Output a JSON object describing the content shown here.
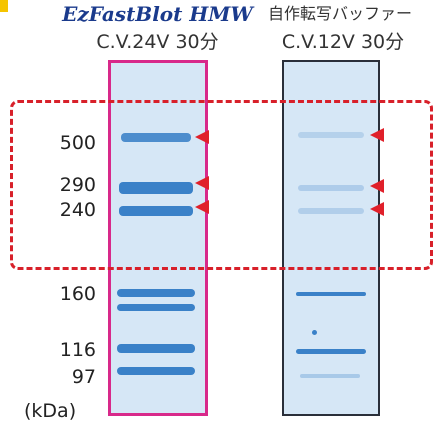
{
  "titles": {
    "left": "EzFastBlot HMW",
    "right": "自作転写バッファー",
    "left_sub": "C.V.24V  30分",
    "right_sub": "C.V.12V  30分"
  },
  "markers": {
    "items": [
      {
        "label": "500"
      },
      {
        "label": "290"
      },
      {
        "label": "240"
      },
      {
        "label": "160"
      },
      {
        "label": "116"
      },
      {
        "label": "97"
      }
    ],
    "unit": "(kDa)"
  },
  "colors": {
    "left_lane_border": "#d8298a",
    "right_lane_border": "#2a2f3a",
    "lane_fill": "#d6e7f6",
    "band": "#1f6fbf",
    "arrow": "#e0202a",
    "highlight_box": "#d8202a"
  }
}
